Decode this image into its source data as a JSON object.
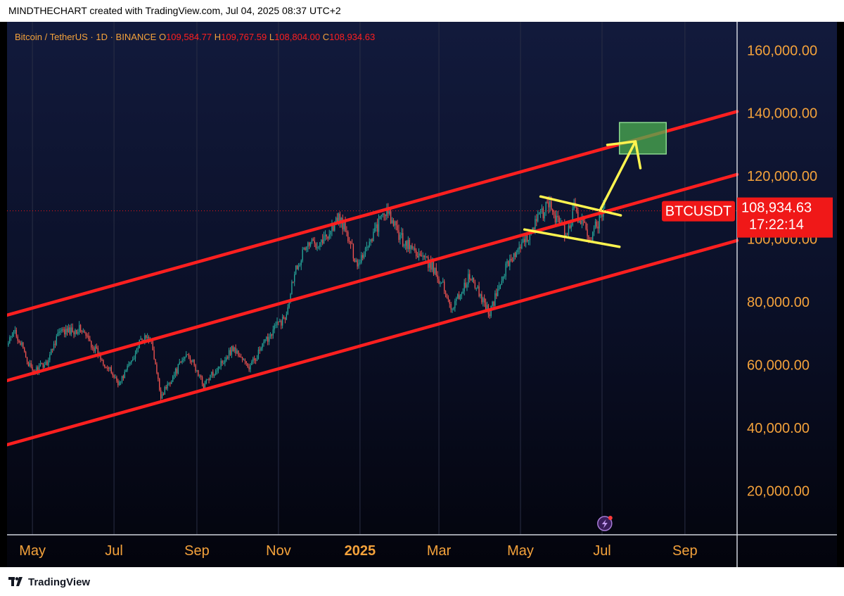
{
  "header": {
    "text": "MINDTHECHART created with TradingView.com, Jul 04, 2025 08:37 UTC+2"
  },
  "footer": {
    "brand": "TradingView"
  },
  "colors": {
    "accent_orange": "#f4a23b",
    "channel_red": "#ff1f1f",
    "pattern_yellow": "#fff44f",
    "target_green": "#4caf50",
    "candle_up": "#26a69a",
    "candle_down": "#ef5350",
    "price_label_bg": "#f01818"
  },
  "chart_data": {
    "type": "candlestick",
    "title": "Bitcoin / TetherUS · 1D · BINANCE",
    "ohlc": {
      "open_label": "O",
      "open": "109,584.77",
      "high_label": "H",
      "high": "109,767.59",
      "low_label": "L",
      "low": "108,804.00",
      "close_label": "C",
      "close": "108,934.63"
    },
    "symbol": "BTCUSDT",
    "last_price": 108934.63,
    "last_price_label": "108,934.63",
    "countdown": "17:22:14",
    "ylim": [
      6000,
      169000
    ],
    "y_ticks": [
      {
        "value": 20000,
        "label": "20,000.00"
      },
      {
        "value": 40000,
        "label": "40,000.00"
      },
      {
        "value": 60000,
        "label": "60,000.00"
      },
      {
        "value": 80000,
        "label": "80,000.00"
      },
      {
        "value": 100000,
        "label": "100,000.00"
      },
      {
        "value": 120000,
        "label": "120,000.00"
      },
      {
        "value": 140000,
        "label": "140,000.00"
      },
      {
        "value": 160000,
        "label": "160,000.00"
      }
    ],
    "x_range": [
      "2024-04-12",
      "2025-10-10"
    ],
    "x_ticks": [
      {
        "date": "2024-05-01",
        "label": "May",
        "bold": false
      },
      {
        "date": "2024-07-01",
        "label": "Jul",
        "bold": false
      },
      {
        "date": "2024-09-01",
        "label": "Sep",
        "bold": false
      },
      {
        "date": "2024-11-01",
        "label": "Nov",
        "bold": false
      },
      {
        "date": "2025-01-01",
        "label": "2025",
        "bold": true
      },
      {
        "date": "2025-03-01",
        "label": "Mar",
        "bold": false
      },
      {
        "date": "2025-05-01",
        "label": "May",
        "bold": false
      },
      {
        "date": "2025-07-01",
        "label": "Jul",
        "bold": false
      },
      {
        "date": "2025-09-01",
        "label": "Sep",
        "bold": false
      }
    ],
    "price_path": [
      {
        "date": "2024-04-12",
        "price": 66000
      },
      {
        "date": "2024-04-18",
        "price": 71000
      },
      {
        "date": "2024-05-01",
        "price": 57500
      },
      {
        "date": "2024-05-12",
        "price": 61000
      },
      {
        "date": "2024-05-20",
        "price": 70000
      },
      {
        "date": "2024-06-06",
        "price": 71500
      },
      {
        "date": "2024-06-24",
        "price": 60500
      },
      {
        "date": "2024-07-05",
        "price": 54000
      },
      {
        "date": "2024-07-21",
        "price": 67500
      },
      {
        "date": "2024-07-28",
        "price": 69000
      },
      {
        "date": "2024-08-05",
        "price": 50000
      },
      {
        "date": "2024-08-25",
        "price": 64000
      },
      {
        "date": "2024-09-06",
        "price": 53500
      },
      {
        "date": "2024-09-28",
        "price": 65500
      },
      {
        "date": "2024-10-10",
        "price": 59000
      },
      {
        "date": "2024-10-29",
        "price": 72000
      },
      {
        "date": "2024-11-06",
        "price": 75000
      },
      {
        "date": "2024-11-13",
        "price": 90000
      },
      {
        "date": "2024-11-22",
        "price": 98000
      },
      {
        "date": "2024-12-05",
        "price": 100000
      },
      {
        "date": "2024-12-17",
        "price": 107000
      },
      {
        "date": "2024-12-30",
        "price": 92000
      },
      {
        "date": "2025-01-20",
        "price": 109000
      },
      {
        "date": "2025-02-01",
        "price": 100000
      },
      {
        "date": "2025-02-24",
        "price": 91000
      },
      {
        "date": "2025-03-03",
        "price": 86000
      },
      {
        "date": "2025-03-11",
        "price": 78000
      },
      {
        "date": "2025-03-24",
        "price": 88000
      },
      {
        "date": "2025-04-08",
        "price": 76500
      },
      {
        "date": "2025-04-22",
        "price": 93000
      },
      {
        "date": "2025-05-01",
        "price": 96500
      },
      {
        "date": "2025-05-10",
        "price": 104000
      },
      {
        "date": "2025-05-22",
        "price": 111000
      },
      {
        "date": "2025-06-05",
        "price": 101000
      },
      {
        "date": "2025-06-10",
        "price": 109500
      },
      {
        "date": "2025-06-22",
        "price": 100000
      },
      {
        "date": "2025-07-03",
        "price": 109600
      }
    ],
    "channel_lines": [
      {
        "name": "upper",
        "start": {
          "date": "2024-04-12",
          "price": 75800
        },
        "end": {
          "date": "2025-10-10",
          "price": 140500
        }
      },
      {
        "name": "middle",
        "start": {
          "date": "2024-04-12",
          "price": 55000
        },
        "end": {
          "date": "2025-10-10",
          "price": 120500
        }
      },
      {
        "name": "lower",
        "start": {
          "date": "2024-04-12",
          "price": 34600
        },
        "end": {
          "date": "2025-10-10",
          "price": 99500
        }
      }
    ],
    "flag_pattern": {
      "upper": {
        "start": {
          "date": "2025-05-16",
          "price": 113500
        },
        "end": {
          "date": "2025-07-15",
          "price": 107500
        }
      },
      "lower": {
        "start": {
          "date": "2025-05-04",
          "price": 103000
        },
        "end": {
          "date": "2025-07-14",
          "price": 97500
        }
      }
    },
    "projection_arrow": {
      "start": {
        "date": "2025-06-30",
        "price": 109500
      },
      "end": {
        "date": "2025-07-26",
        "price": 131000
      }
    },
    "target_zone": {
      "start_date": "2025-07-14",
      "end_date": "2025-08-18",
      "low": 127000,
      "high": 137000
    }
  }
}
